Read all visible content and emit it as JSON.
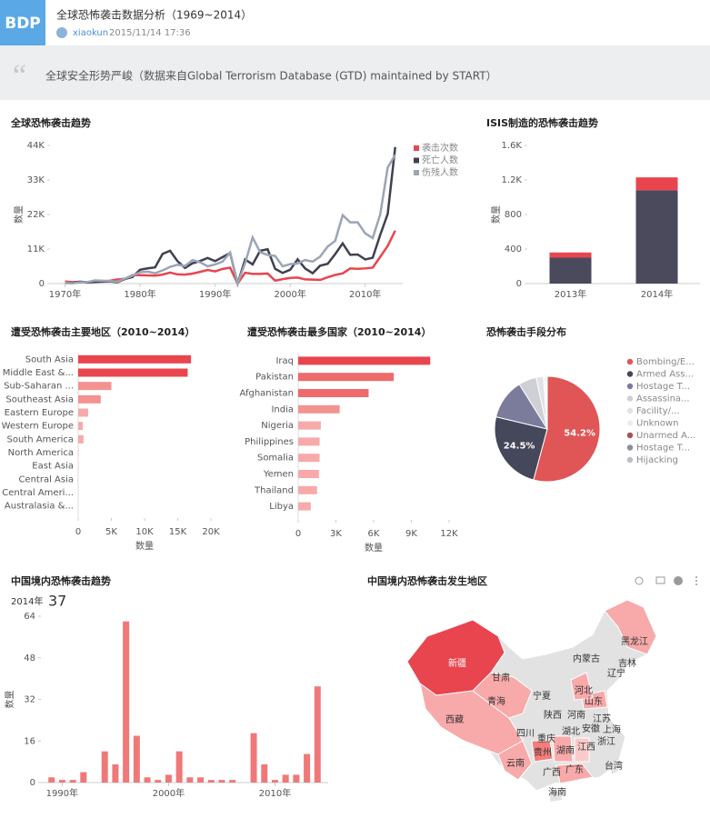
{
  "header": {
    "logo": "BDP",
    "title": "全球恐怖袭击数据分析（1969~2014）",
    "author": "xiaokun",
    "date": "2015/11/14 17:36"
  },
  "quote": "全球安全形势严峻（数据来自Global Terrorism Database (GTD) maintained by START）",
  "chart_data": [
    {
      "type": "line",
      "title": "全球恐怖袭击趋势",
      "y_label": "数量",
      "x": [
        1970,
        1971,
        1972,
        1973,
        1974,
        1975,
        1976,
        1977,
        1978,
        1979,
        1980,
        1981,
        1982,
        1983,
        1984,
        1985,
        1986,
        1987,
        1988,
        1989,
        1990,
        1991,
        1992,
        1993,
        1994,
        1995,
        1996,
        1997,
        1998,
        1999,
        2000,
        2001,
        2002,
        2003,
        2004,
        2005,
        2006,
        2007,
        2008,
        2009,
        2010,
        2011,
        2012,
        2013,
        2014
      ],
      "xlim": [
        1968,
        2015
      ],
      "xticks": [
        {
          "value": 1970,
          "label": "1970年"
        },
        {
          "value": 1980,
          "label": "1980年"
        },
        {
          "value": 1990,
          "label": "1990年"
        },
        {
          "value": 2000,
          "label": "2000年"
        },
        {
          "value": 2010,
          "label": "2010年"
        }
      ],
      "ylim": [
        0,
        44000
      ],
      "yticks": [
        0,
        {
          "value": 11000,
          "label": "11K"
        },
        {
          "value": 22000,
          "label": "22K"
        },
        {
          "value": 33000,
          "label": "33K"
        },
        {
          "value": 44000,
          "label": "44K"
        }
      ],
      "legend": "top-right",
      "series": [
        {
          "name": "袭击次数",
          "color": "#e8454f",
          "values": [
            650,
            470,
            570,
            470,
            580,
            740,
            920,
            1320,
            1530,
            2660,
            2660,
            2590,
            2540,
            2870,
            3490,
            2920,
            2860,
            3180,
            3720,
            4320,
            3890,
            4680,
            5070,
            0,
            3460,
            3080,
            3060,
            3200,
            930,
            1400,
            1810,
            1910,
            1330,
            1280,
            1160,
            2020,
            2750,
            3240,
            4800,
            4720,
            4830,
            5080,
            8500,
            12000,
            16860
          ]
        },
        {
          "name": "死亡人数",
          "color": "#3f4150",
          "values": [
            170,
            170,
            570,
            370,
            540,
            600,
            670,
            450,
            1460,
            2100,
            4400,
            4850,
            5140,
            9440,
            10450,
            7100,
            4960,
            6480,
            7190,
            8140,
            7150,
            8430,
            9740,
            0,
            7690,
            6100,
            10450,
            10930,
            4700,
            3390,
            4400,
            7730,
            4800,
            3300,
            5700,
            6300,
            9380,
            12800,
            9150,
            9270,
            7690,
            8240,
            15500,
            22200,
            43500
          ]
        },
        {
          "name": "伤残人数",
          "color": "#9aa5b5",
          "values": [
            200,
            80,
            400,
            490,
            1000,
            900,
            800,
            600,
            1600,
            2500,
            3600,
            3800,
            3300,
            4200,
            5300,
            6000,
            5600,
            7500,
            6800,
            5500,
            6100,
            7000,
            9900,
            0,
            6500,
            14700,
            10000,
            9100,
            8800,
            5500,
            6200,
            6400,
            7500,
            7000,
            8600,
            11800,
            13600,
            21800,
            19500,
            19500,
            16000,
            14500,
            22000,
            37000,
            41000
          ]
        }
      ]
    },
    {
      "type": "stacked_bar",
      "title": "ISIS制造的恐怖袭击趋势",
      "y_label": "数量",
      "categories": [
        "2013年",
        "2014年"
      ],
      "ylim": [
        0,
        1600
      ],
      "yticks": [
        0,
        400,
        800,
        {
          "value": 1200,
          "label": "1.2K"
        },
        {
          "value": 1600,
          "label": "1.6K"
        }
      ],
      "series": [
        {
          "color": "#4a4a5c",
          "values": [
            300,
            1080
          ]
        },
        {
          "color": "#e8454f",
          "values": [
            60,
            150
          ]
        }
      ]
    },
    {
      "type": "hbar",
      "title": "遭受恐怖袭击主要地区（2010~2014）",
      "x_label": "数量",
      "categories": [
        "South Asia",
        "Middle East &...",
        "Sub-Saharan ...",
        "Southeast Asia",
        "Eastern Europe",
        "Western Europe",
        "South America",
        "North America",
        "East Asia",
        "Central Asia",
        "Central Ameri...",
        "Australasia &..."
      ],
      "values": [
        17000,
        16500,
        5000,
        3400,
        1500,
        700,
        800,
        100,
        80,
        50,
        30,
        20
      ],
      "colors": [
        "#e8454f",
        "#e8454f",
        "#f49292",
        "#f49292",
        "#f8a9a9",
        "#f8a9a9",
        "#f8a9a9",
        "#fbcaca",
        "#fbcaca",
        "#fbcaca",
        "#fbcaca",
        "#fbcaca"
      ],
      "xlim": [
        0,
        20000
      ],
      "xticks": [
        0,
        {
          "value": 5000,
          "label": "5K"
        },
        {
          "value": 10000,
          "label": "10K"
        },
        {
          "value": 15000,
          "label": "15K"
        },
        {
          "value": 20000,
          "label": "20K"
        }
      ]
    },
    {
      "type": "hbar",
      "title": "遭受恐怖袭击最多国家（2010~2014）",
      "x_label": "数量",
      "categories": [
        "Iraq",
        "Pakistan",
        "Afghanistan",
        "India",
        "Nigeria",
        "Philippines",
        "Somalia",
        "Yemen",
        "Thailand",
        "Libya"
      ],
      "values": [
        10500,
        7600,
        5600,
        3300,
        1800,
        1700,
        1700,
        1650,
        1500,
        1000
      ],
      "colors": [
        "#e8454f",
        "#ef6a6a",
        "#ef6a6a",
        "#f49292",
        "#f8a9a9",
        "#f8a9a9",
        "#f8a9a9",
        "#f8a9a9",
        "#f8a9a9",
        "#f8a9a9"
      ],
      "xlim": [
        0,
        12000
      ],
      "xticks": [
        0,
        {
          "value": 3000,
          "label": "3K"
        },
        {
          "value": 6000,
          "label": "6K"
        },
        {
          "value": 9000,
          "label": "9K"
        },
        {
          "value": 12000,
          "label": "12K"
        }
      ]
    },
    {
      "type": "pie",
      "title": "恐怖袭击手段分布",
      "legend": "right",
      "categories": [
        "Bombing/E...",
        "Armed Ass...",
        "Hostage T...",
        "Assassina...",
        "Facility/...",
        "Unknown",
        "Unarmed A...",
        "Hostage T...",
        "Hijacking"
      ],
      "values": [
        54.2,
        24.5,
        12.4,
        5.5,
        2.2,
        0.6,
        0.3,
        0.2,
        0.1
      ],
      "value_labels": [
        "54.2%",
        "24.5%",
        null,
        null,
        null,
        null,
        null,
        null,
        null
      ],
      "colors": [
        "#e05555",
        "#45475a",
        "#7b7b9b",
        "#cfd0d6",
        "#e2e2e6",
        "#ececf0",
        "#a8505a",
        "#8c8c9c",
        "#bdbdc4"
      ]
    },
    {
      "type": "bar",
      "title": "中国境内恐怖袭击趋势",
      "y_label": "数量",
      "highlight_label": "2014年",
      "x": [
        1989,
        1990,
        1991,
        1992,
        1993,
        1994,
        1995,
        1996,
        1997,
        1998,
        1999,
        2000,
        2001,
        2002,
        2003,
        2004,
        2005,
        2006,
        2007,
        2008,
        2009,
        2010,
        2011,
        2012,
        2013,
        2014
      ],
      "values": [
        2,
        1,
        1,
        4,
        null,
        12,
        7,
        62,
        18,
        2,
        1,
        3,
        12,
        2,
        2,
        1,
        1,
        1,
        0,
        19,
        7,
        1,
        3,
        3,
        11,
        37
      ],
      "color": "#f07878",
      "xlim": [
        1988,
        2015
      ],
      "xticks": [
        {
          "value": 1990,
          "label": "1990年"
        },
        {
          "value": 2000,
          "label": "2000年"
        },
        {
          "value": 2010,
          "label": "2010年"
        }
      ],
      "ylim": [
        0,
        64
      ],
      "yticks": [
        0,
        16,
        32,
        48,
        64
      ]
    },
    {
      "type": "map",
      "title": "中国境内恐怖袭击发生地区",
      "regions": [
        {
          "name": "新疆",
          "color": "#e8454f"
        },
        {
          "name": "西藏",
          "color": "#f8a9a9"
        },
        {
          "name": "青海",
          "color": "#f8a9a9"
        },
        {
          "name": "黑龙江",
          "color": "#f8a9a9"
        },
        {
          "name": "云南",
          "color": "#f8a9a9"
        },
        {
          "name": "贵州",
          "color": "#f47c7c"
        },
        {
          "name": "湖南",
          "color": "#f8a9a9"
        },
        {
          "name": "广东",
          "color": "#f8a9a9"
        },
        {
          "name": "山东",
          "color": "#f8a9a9"
        },
        {
          "name": "河北",
          "color": "#f8a9a9"
        },
        {
          "name": "江西",
          "color": "#fbcaca"
        },
        {
          "name": "甘肃"
        },
        {
          "name": "内蒙古"
        },
        {
          "name": "吉林"
        },
        {
          "name": "辽宁"
        },
        {
          "name": "宁夏"
        },
        {
          "name": "陕西"
        },
        {
          "name": "河南"
        },
        {
          "name": "江苏"
        },
        {
          "name": "安徽"
        },
        {
          "name": "上海"
        },
        {
          "name": "湖北"
        },
        {
          "name": "浙江"
        },
        {
          "name": "四川"
        },
        {
          "name": "重庆"
        },
        {
          "name": "广西"
        },
        {
          "name": "台湾"
        },
        {
          "name": "海南"
        }
      ]
    }
  ]
}
